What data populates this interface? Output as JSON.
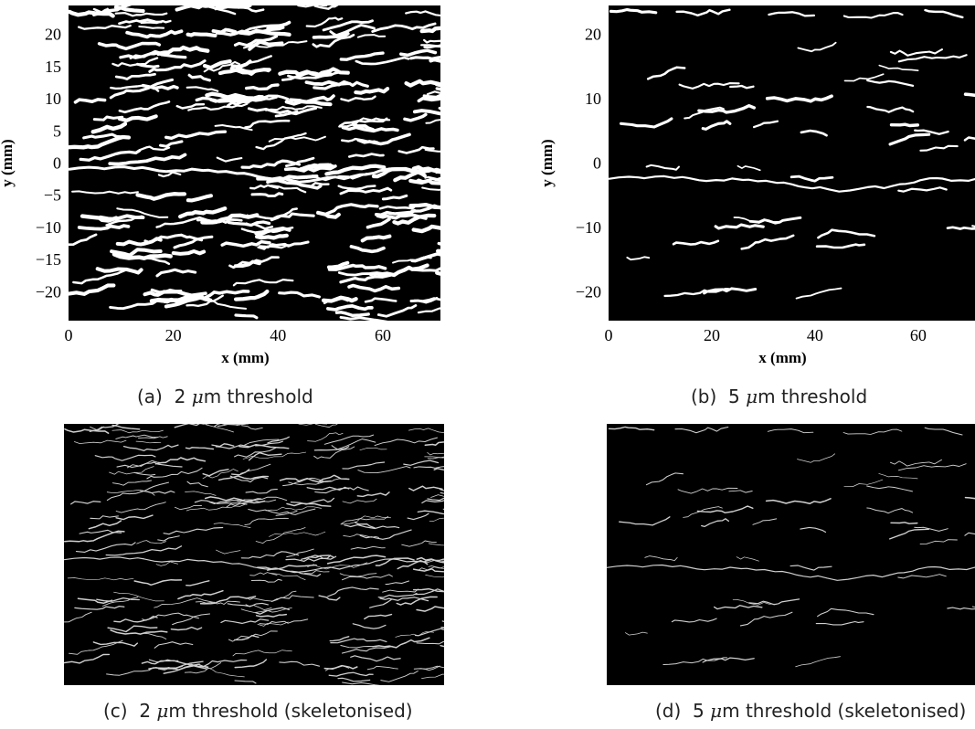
{
  "figure": {
    "panels": [
      {
        "id": "a",
        "caption_tag": "(a)",
        "caption_value": "2",
        "caption_unit": "m threshold",
        "caption_suffix": "",
        "x_label": "x (mm)",
        "y_label": "y (mm)",
        "x_ticks": [
          "0",
          "20",
          "40",
          "60"
        ],
        "y_ticks": [
          "20",
          "15",
          "10",
          "5",
          "0",
          "−5",
          "−10",
          "−15",
          "−20"
        ],
        "x_range": [
          0,
          71
        ],
        "y_range": [
          -24.5,
          24.5
        ],
        "has_axes": true
      },
      {
        "id": "b",
        "caption_tag": "(b)",
        "caption_value": "5",
        "caption_unit": "m threshold",
        "caption_suffix": "",
        "x_label": "x (mm)",
        "y_label": "y (mm)",
        "x_ticks": [
          "0",
          "20",
          "40",
          "60"
        ],
        "y_ticks": [
          "20",
          "10",
          "0",
          "−10",
          "−20"
        ],
        "x_range": [
          0,
          71
        ],
        "y_range": [
          -24.5,
          24.5
        ],
        "has_axes": true
      },
      {
        "id": "c",
        "caption_tag": "(c)",
        "caption_value": "2",
        "caption_unit": "m threshold (skeletonised)",
        "has_axes": false
      },
      {
        "id": "d",
        "caption_tag": "(d)",
        "caption_value": "5",
        "caption_unit": "m threshold (skeletonised)",
        "has_axes": false
      }
    ],
    "colors": {
      "background": "#000000",
      "crack": "#ffffff",
      "skeleton": "#d0d0d0"
    }
  }
}
